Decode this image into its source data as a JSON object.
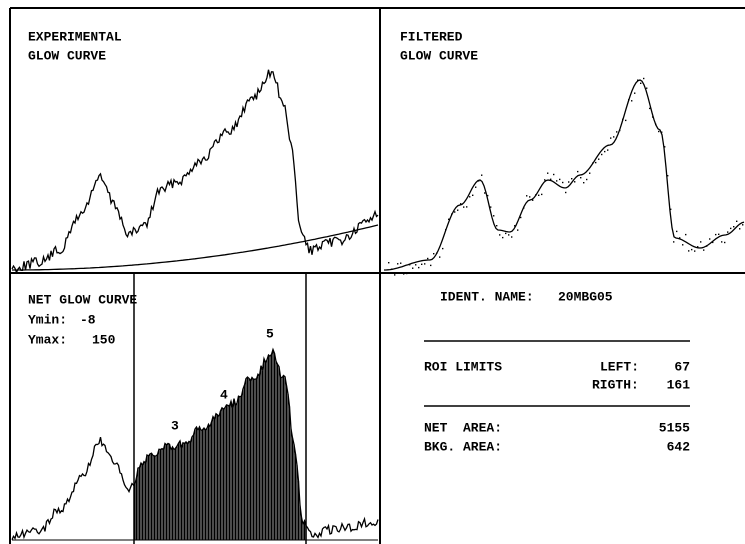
{
  "experimental": {
    "title_line1": "EXPERIMENTAL",
    "title_line2": "GLOW CURVE"
  },
  "filtered": {
    "title_line1": "FILTERED",
    "title_line2": "GLOW CURVE"
  },
  "net": {
    "title": "NET GLOW CURVE",
    "ymin_label": "Ymin:",
    "ymin": -8,
    "ymax_label": "Ymax:",
    "ymax": 150,
    "peaks": [
      "3",
      "4",
      "5"
    ]
  },
  "info": {
    "ident_label": "IDENT. NAME:",
    "ident": "20MBG05",
    "roi_label": "ROI LIMITS",
    "left_label": "LEFT:",
    "left": 67,
    "right_label": "RIGTH:",
    "right": 161,
    "net_area_label": "NET  AREA:",
    "net_area": 5155,
    "bkg_area_label": "BKG. AREA:",
    "bkg_area": 642
  }
}
